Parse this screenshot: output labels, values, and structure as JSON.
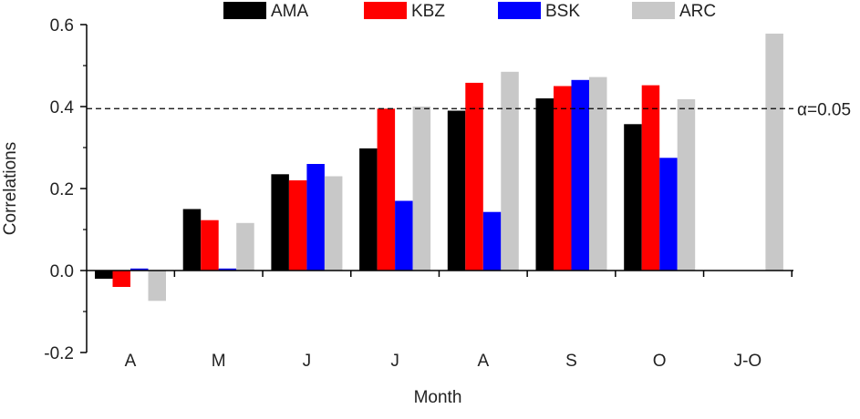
{
  "chart_data": {
    "type": "bar",
    "xlabel": "Month",
    "ylabel": "Correlations",
    "ylim": [
      -0.2,
      0.6
    ],
    "yticks": [
      "-0.2",
      "0.0",
      "0.2",
      "0.4",
      "0.6"
    ],
    "categories": [
      "A",
      "M",
      "J",
      "J",
      "A",
      "S",
      "O",
      "J-O"
    ],
    "series": [
      {
        "name": "AMA",
        "color": "#000000",
        "values": [
          -0.02,
          0.15,
          0.235,
          0.298,
          0.39,
          0.42,
          0.357,
          null
        ]
      },
      {
        "name": "KBZ",
        "color": "#ff0000",
        "values": [
          -0.04,
          0.123,
          0.22,
          0.395,
          0.458,
          0.45,
          0.452,
          null
        ]
      },
      {
        "name": "BSK",
        "color": "#0000ff",
        "values": [
          0.005,
          0.005,
          0.26,
          0.17,
          0.143,
          0.465,
          0.275,
          null
        ]
      },
      {
        "name": "ARC",
        "color": "#c8c8c8",
        "values": [
          -0.074,
          0.116,
          0.23,
          0.4,
          0.485,
          0.472,
          0.418,
          0.578
        ]
      }
    ],
    "reference_line": {
      "value": 0.395,
      "label": "α=0.05",
      "style": "dashed"
    },
    "legend_position": "top",
    "grid": false
  }
}
